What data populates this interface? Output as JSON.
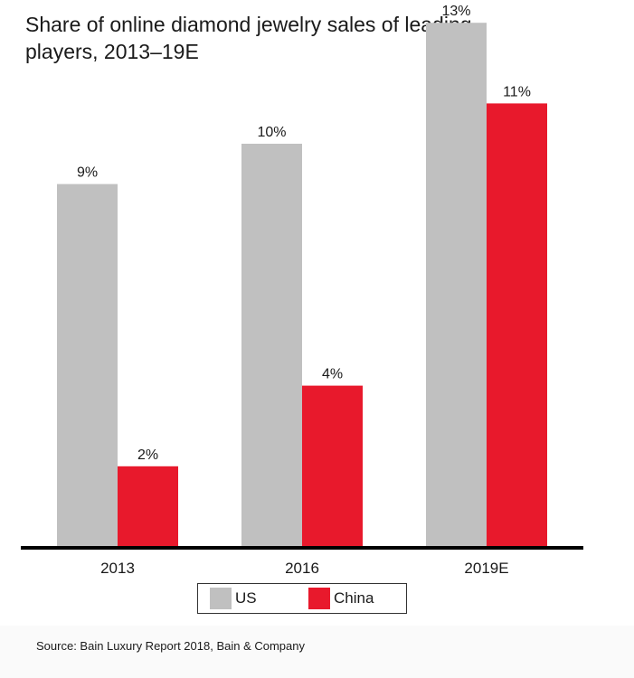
{
  "chart_data": {
    "type": "bar",
    "title": "Share of online diamond jewelry sales of leading players, 2013–19E",
    "categories": [
      "2013",
      "2016",
      "2019E"
    ],
    "series": [
      {
        "name": "US",
        "values": [
          9,
          10,
          13
        ],
        "labels": [
          "9%",
          "10%",
          "13%"
        ],
        "color": "#c0c0c0"
      },
      {
        "name": "China",
        "values": [
          2,
          4,
          11
        ],
        "labels": [
          "2%",
          "4%",
          "11%"
        ],
        "color": "#e8192c"
      }
    ],
    "ylim": [
      0,
      13
    ],
    "grid": false,
    "legend": "bottom"
  },
  "source": "Source: Bain Luxury Report 2018, Bain & Company"
}
